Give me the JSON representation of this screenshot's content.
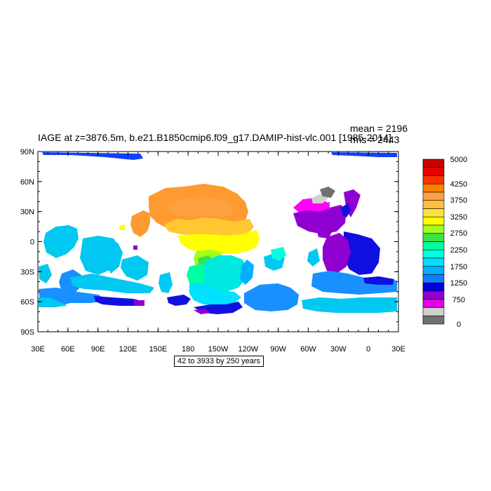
{
  "title": "IAGE at z=3876.5m, b.e21.B1850cmip6.f09_g17.DAMIP-hist-vlc.001 [1985-2014]",
  "stats": {
    "mean": "mean = 2196",
    "rms": "rms = 2443"
  },
  "range_note": "42 to 3933 by 250 years",
  "axes": {
    "lat_ticks": [
      "90N",
      "60N",
      "30N",
      "0",
      "30S",
      "60S",
      "90S"
    ],
    "lon_ticks": [
      "30E",
      "60E",
      "90E",
      "120E",
      "150E",
      "180",
      "150W",
      "120W",
      "90W",
      "60W",
      "30W",
      "0",
      "30E"
    ]
  },
  "colorbar": {
    "labels": [
      "5000",
      "4250",
      "3750",
      "3250",
      "2750",
      "2250",
      "1750",
      "1250",
      "750",
      "0"
    ],
    "colors": [
      "#c80000",
      "#e80000",
      "#ff3000",
      "#ff8000",
      "#ffa040",
      "#ffc040",
      "#ffe040",
      "#ffff00",
      "#a0ff20",
      "#40e040",
      "#00ffa0",
      "#00ffe0",
      "#00e0ff",
      "#00b0ff",
      "#1080ff",
      "#0000e0",
      "#9000d0",
      "#e000e0",
      "#d0d0d0",
      "#707070"
    ]
  },
  "chart_data": {
    "type": "heatmap",
    "title": "IAGE at z=3876.5m, b.e21.B1850cmip6.f09_g17.DAMIP-hist-vlc.001 [1985-2014]",
    "x_ticks": [
      "30E",
      "60E",
      "90E",
      "120E",
      "150E",
      "180",
      "150W",
      "120W",
      "90W",
      "60W",
      "30W",
      "0",
      "30E"
    ],
    "y_ticks": [
      "90N",
      "60N",
      "30N",
      "0",
      "30S",
      "60S",
      "90S"
    ],
    "xlim": [
      30,
      390
    ],
    "ylim": [
      -90,
      90
    ],
    "contour_levels": [
      0,
      750,
      1250,
      1750,
      2250,
      2750,
      3250,
      3750,
      4250,
      5000
    ],
    "mean": 2196,
    "rms": 2443,
    "range": "42 to 3933 by 250 years"
  }
}
